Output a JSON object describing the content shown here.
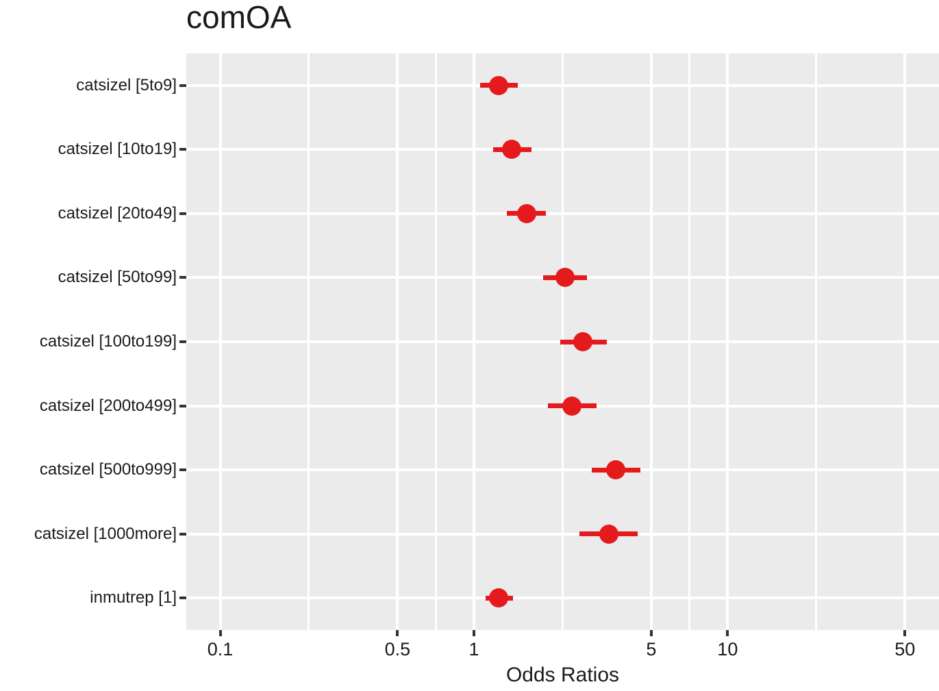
{
  "chart_data": {
    "type": "scatter",
    "subtype": "forest-plot-odds-ratios",
    "title": "comOA",
    "xlabel": "Odds Ratios",
    "ylabel": "",
    "x_scale": "log10",
    "xlim": [
      0.0735,
      68.1
    ],
    "x_ticks": [
      0.1,
      0.5,
      1,
      5,
      10,
      50
    ],
    "x_tick_labels": [
      "0.1",
      "0.5",
      "1",
      "5",
      "10",
      "50"
    ],
    "grid": "white major and minor verticals, white horizontal per category, on gray panel",
    "legend": "none",
    "rows": [
      {
        "label": "catsizel [5to9]",
        "or": 1.25,
        "ci_low": 1.06,
        "ci_high": 1.49
      },
      {
        "label": "catsizel [10to19]",
        "or": 1.41,
        "ci_low": 1.19,
        "ci_high": 1.69
      },
      {
        "label": "catsizel [20to49]",
        "or": 1.61,
        "ci_low": 1.35,
        "ci_high": 1.92
      },
      {
        "label": "catsizel [50to99]",
        "or": 2.29,
        "ci_low": 1.87,
        "ci_high": 2.79
      },
      {
        "label": "catsizel [100to199]",
        "or": 2.69,
        "ci_low": 2.19,
        "ci_high": 3.34
      },
      {
        "label": "catsizel [200to499]",
        "or": 2.44,
        "ci_low": 1.96,
        "ci_high": 3.05
      },
      {
        "label": "catsizel [500to999]",
        "or": 3.62,
        "ci_low": 2.91,
        "ci_high": 4.53
      },
      {
        "label": "catsizel [1000more]",
        "or": 3.4,
        "ci_low": 2.6,
        "ci_high": 4.41
      },
      {
        "label": "inmutrep [1]",
        "or": 1.25,
        "ci_low": 1.11,
        "ci_high": 1.43
      }
    ]
  },
  "colors": {
    "point": "#E41A1C",
    "ci_line": "#E41A1C",
    "panel_background": "#EBEBEB",
    "gridline": "#FFFFFF",
    "tick_mark": "#333333",
    "text": "#1A1A1A",
    "figure_background": "#FFFFFF"
  }
}
